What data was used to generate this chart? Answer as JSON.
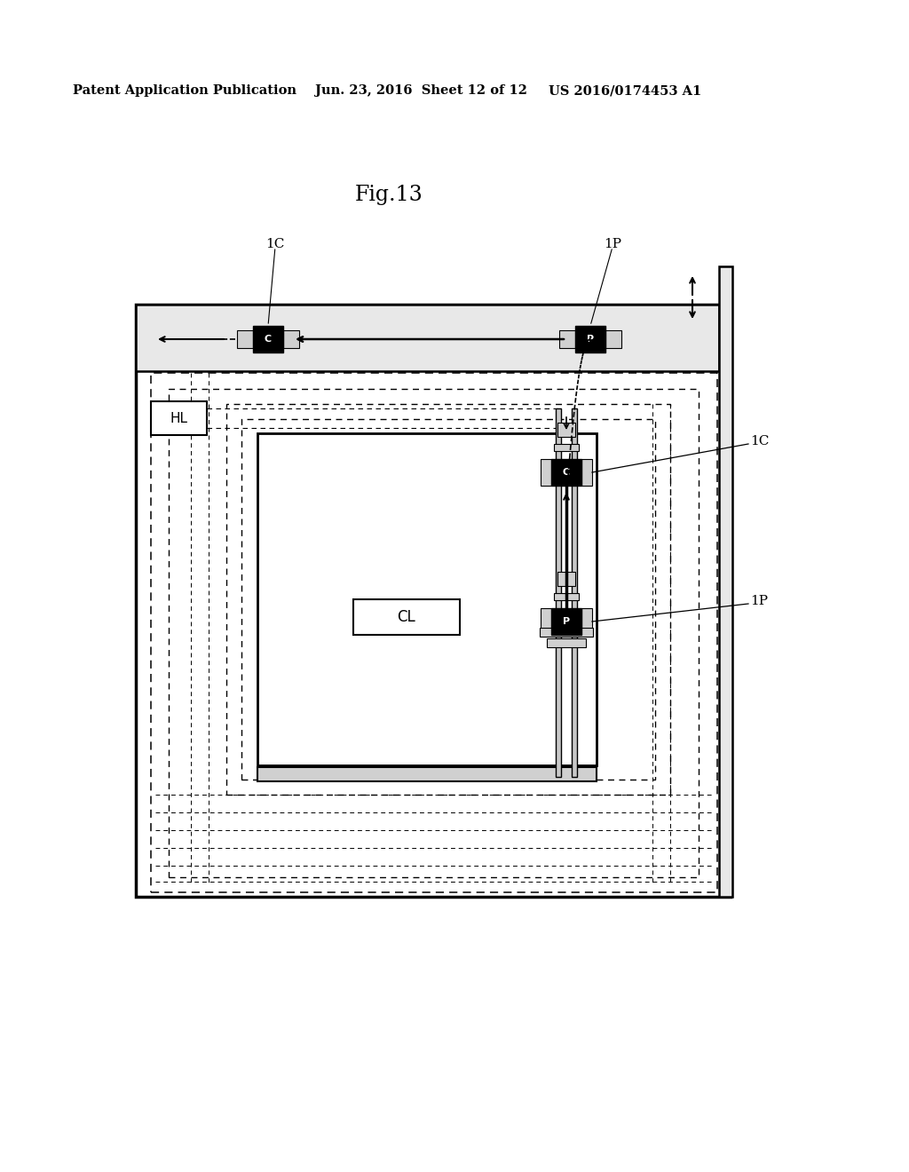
{
  "title": "Fig.13",
  "header_left": "Patent Application Publication",
  "header_mid": "Jun. 23, 2016  Sheet 12 of 12",
  "header_right": "US 2016/0174453 A1",
  "bg_color": "#ffffff",
  "text_color": "#000000"
}
